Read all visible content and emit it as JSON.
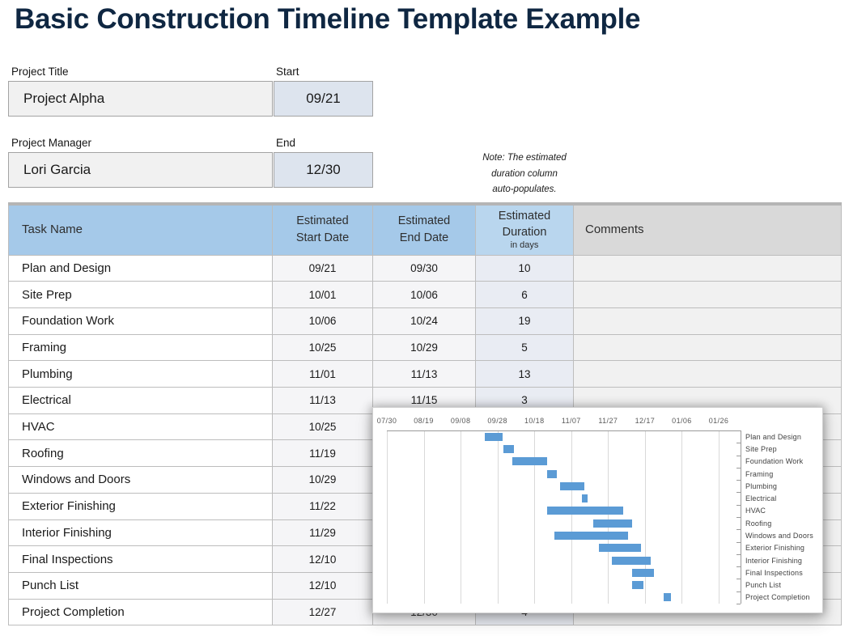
{
  "title": "Basic Construction Timeline Template Example",
  "header_fields": {
    "project_title": {
      "label": "Project Title",
      "value": "Project Alpha"
    },
    "start": {
      "label": "Start",
      "value": "09/21"
    },
    "project_manager": {
      "label": "Project Manager",
      "value": "Lori Garcia"
    },
    "end": {
      "label": "End",
      "value": "12/30"
    }
  },
  "note": {
    "line1": "Note: The estimated",
    "line2": "duration column",
    "line3": "auto-populates."
  },
  "table": {
    "columns": {
      "task": "Task Name",
      "start_line1": "Estimated",
      "start_line2": "Start Date",
      "end_line1": "Estimated",
      "end_line2": "End Date",
      "duration_line1": "Estimated",
      "duration_line2": "Duration",
      "duration_line3": "in days",
      "comments": "Comments"
    },
    "rows": [
      {
        "task": "Plan and Design",
        "start": "09/21",
        "end": "09/30",
        "duration": "10",
        "comments": ""
      },
      {
        "task": "Site Prep",
        "start": "10/01",
        "end": "10/06",
        "duration": "6",
        "comments": ""
      },
      {
        "task": "Foundation Work",
        "start": "10/06",
        "end": "10/24",
        "duration": "19",
        "comments": ""
      },
      {
        "task": "Framing",
        "start": "10/25",
        "end": "10/29",
        "duration": "5",
        "comments": ""
      },
      {
        "task": "Plumbing",
        "start": "11/01",
        "end": "11/13",
        "duration": "13",
        "comments": ""
      },
      {
        "task": "Electrical",
        "start": "11/13",
        "end": "11/15",
        "duration": "3",
        "comments": ""
      },
      {
        "task": "HVAC",
        "start": "10/25",
        "end": "",
        "duration": "",
        "comments": ""
      },
      {
        "task": "Roofing",
        "start": "11/19",
        "end": "",
        "duration": "",
        "comments": ""
      },
      {
        "task": "Windows and Doors",
        "start": "10/29",
        "end": "",
        "duration": "",
        "comments": ""
      },
      {
        "task": "Exterior Finishing",
        "start": "11/22",
        "end": "",
        "duration": "",
        "comments": ""
      },
      {
        "task": "Interior Finishing",
        "start": "11/29",
        "end": "",
        "duration": "",
        "comments": ""
      },
      {
        "task": "Final Inspections",
        "start": "12/10",
        "end": "",
        "duration": "",
        "comments": ""
      },
      {
        "task": "Punch List",
        "start": "12/10",
        "end": "",
        "duration": "",
        "comments": ""
      },
      {
        "task": "Project Completion",
        "start": "12/27",
        "end": "12/30",
        "duration": "4",
        "comments": ""
      }
    ]
  },
  "chart_data": {
    "type": "bar",
    "subtype": "gantt",
    "x_ticks": [
      "07/30",
      "08/19",
      "09/08",
      "09/28",
      "10/18",
      "11/07",
      "11/27",
      "12/17",
      "01/06",
      "01/26"
    ],
    "x_range": [
      "07/30",
      "01/26"
    ],
    "bar_color": "#5b9bd5",
    "grid": true,
    "labels_position": "right",
    "bars": [
      {
        "label": "Plan and Design",
        "start": "09/21",
        "end": "09/30"
      },
      {
        "label": "Site Prep",
        "start": "10/01",
        "end": "10/06"
      },
      {
        "label": "Foundation Work",
        "start": "10/06",
        "end": "10/24"
      },
      {
        "label": "Framing",
        "start": "10/25",
        "end": "10/29"
      },
      {
        "label": "Plumbing",
        "start": "11/01",
        "end": "11/13"
      },
      {
        "label": "Electrical",
        "start": "11/13",
        "end": "11/15"
      },
      {
        "label": "HVAC",
        "start": "10/25",
        "end": "12/04"
      },
      {
        "label": "Roofing",
        "start": "11/19",
        "end": "12/09"
      },
      {
        "label": "Windows and Doors",
        "start": "10/29",
        "end": "12/07"
      },
      {
        "label": "Exterior Finishing",
        "start": "11/22",
        "end": "12/14"
      },
      {
        "label": "Interior Finishing",
        "start": "11/29",
        "end": "12/19"
      },
      {
        "label": "Final Inspections",
        "start": "12/10",
        "end": "12/21"
      },
      {
        "label": "Punch List",
        "start": "12/10",
        "end": "12/15"
      },
      {
        "label": "Project Completion",
        "start": "12/27",
        "end": "12/30"
      }
    ]
  },
  "colors": {
    "title_text": "#0f2742",
    "header_blue": "#a5c9e9",
    "header_blue_light": "#b9d6ee",
    "header_gray": "#d9d9d9",
    "date_cell": "#f5f5f7",
    "duration_cell": "#e9ecf3",
    "comments_cell": "#f1f1f1",
    "field_box_gray": "#f1f1f1",
    "field_box_blue": "#dde4ee",
    "bar_blue": "#5b9bd5"
  }
}
